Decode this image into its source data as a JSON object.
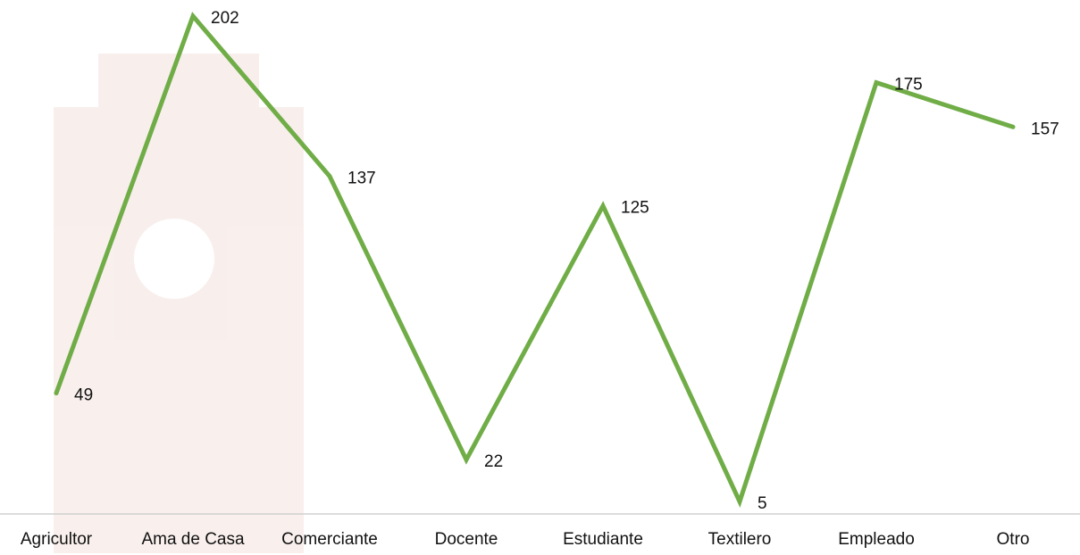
{
  "chart_data": {
    "type": "line",
    "categories": [
      "Agricultor",
      "Ama de Casa",
      "Comerciante",
      "Docente",
      "Estudiante",
      "Textilero",
      "Empleado",
      "Otro"
    ],
    "values": [
      49,
      202,
      137,
      22,
      125,
      5,
      175,
      157
    ],
    "color": "#70ad47",
    "ylim": [
      0,
      202
    ]
  }
}
